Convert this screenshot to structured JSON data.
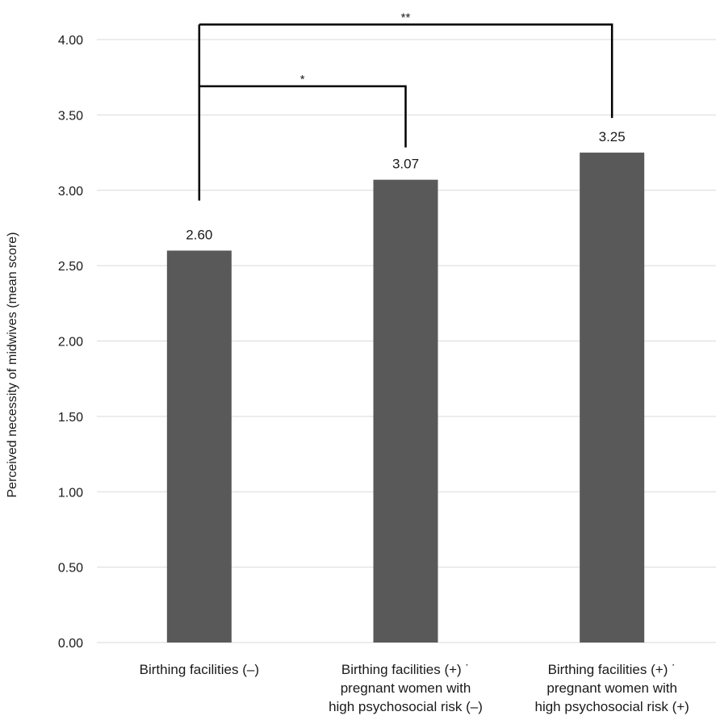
{
  "chart_data": {
    "type": "bar",
    "title": "",
    "xlabel": "",
    "ylabel": "Perceived necessity of midwives (mean score)",
    "ylim": [
      0,
      4
    ],
    "yticks": [
      "0.00",
      "0.50",
      "1.00",
      "1.50",
      "2.00",
      "2.50",
      "3.00",
      "3.50",
      "4.00"
    ],
    "grid": true,
    "bar_color": "#595959",
    "categories": [
      [
        "Birthing facilities (–)"
      ],
      [
        "Birthing facilities (+) ˙",
        "pregnant women with",
        "high psychosocial risk (–)"
      ],
      [
        "Birthing facilities (+) ˙",
        "pregnant women with",
        "high psychosocial risk (+)"
      ]
    ],
    "values": [
      2.6,
      3.07,
      3.25
    ],
    "value_labels": [
      "2.60",
      "3.07",
      "3.25"
    ],
    "significance": [
      {
        "from": 0,
        "to": 1,
        "label": "*"
      },
      {
        "from": 0,
        "to": 2,
        "label": "**"
      }
    ]
  }
}
